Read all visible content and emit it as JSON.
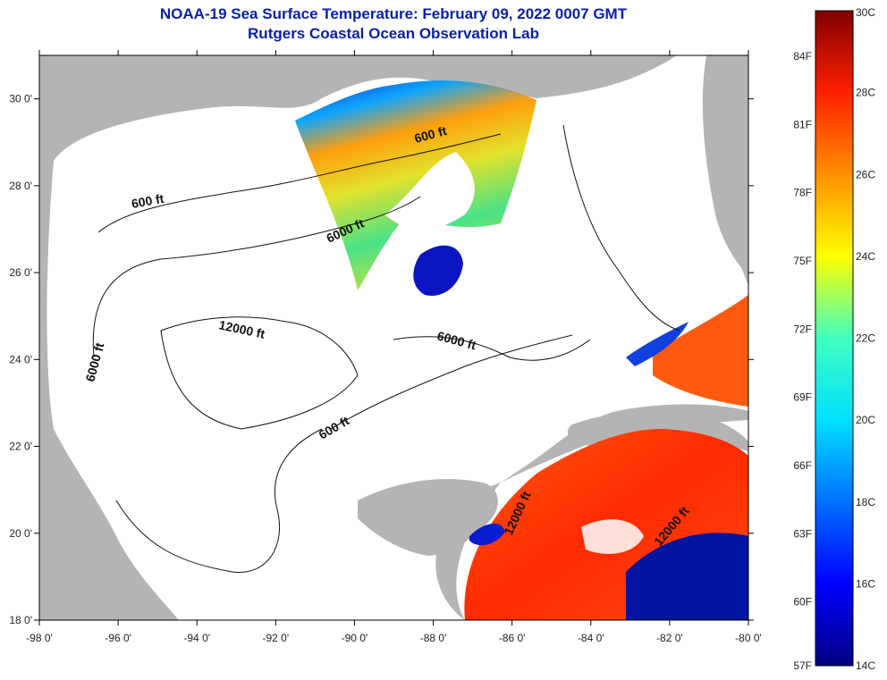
{
  "header": {
    "title": "NOAA-19 Sea Surface Temperature:  February 09, 2022 0007 GMT",
    "subtitle": "Rutgers Coastal Ocean Observation Lab"
  },
  "map": {
    "lon_range": [
      -98,
      -80
    ],
    "lat_range": [
      18,
      31
    ],
    "x_tick_labels": [
      "-98 0'",
      "-96 0'",
      "-94 0'",
      "-92 0'",
      "-90 0'",
      "-88 0'",
      "-86 0'",
      "-84 0'",
      "-82 0'",
      "-80 0'"
    ],
    "y_tick_labels": [
      "18 0'",
      "20 0'",
      "22 0'",
      "24 0'",
      "26 0'",
      "28 0'",
      "30 0'"
    ],
    "land_color": "#b4b4b4",
    "ocean_nodata_color": "#ffffff",
    "contour_labels": [
      "600 ft",
      "600 ft",
      "6000 ft",
      "600 ft",
      "6000 ft",
      "12000 ft",
      "6000 ft",
      "12000 ft",
      "12000 ft"
    ]
  },
  "colorbar": {
    "celsius_labels": [
      "30C",
      "28C",
      "26C",
      "24C",
      "22C",
      "20C",
      "18C",
      "16C",
      "14C"
    ],
    "fahrenheit_labels": [
      "84F",
      "81F",
      "78F",
      "75F",
      "72F",
      "69F",
      "66F",
      "63F",
      "60F",
      "57F"
    ],
    "range_c": [
      14,
      30
    ],
    "colors": [
      "#00007f",
      "#0000ff",
      "#0080ff",
      "#00ffff",
      "#80ff80",
      "#ffff00",
      "#ff8000",
      "#ff0000",
      "#800000"
    ]
  }
}
